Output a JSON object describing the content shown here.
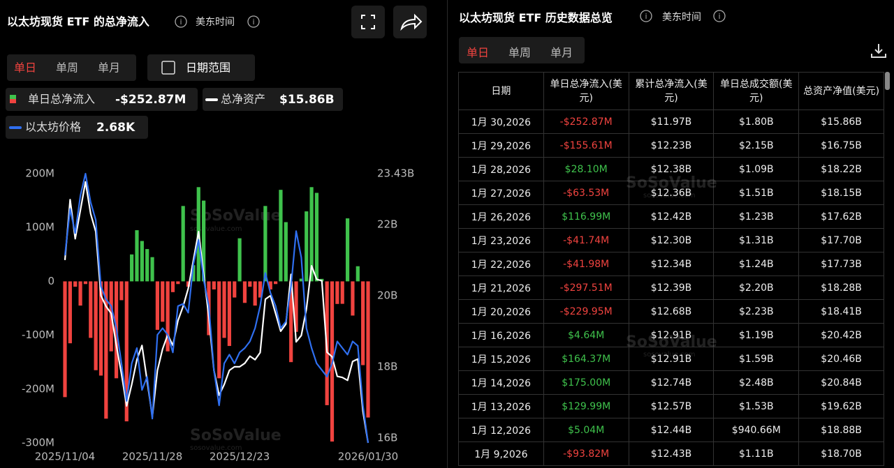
{
  "left_panel": {
    "title": "以太坊现货 ETF 的总净流入",
    "timezone": "美东时间",
    "tabs": [
      "单日",
      "单周",
      "单月"
    ],
    "date_range": "日期范围",
    "legend": [
      {
        "label": "单日总净流入",
        "value": "-$252.87M"
      },
      {
        "label": "总净资产",
        "value": "$15.86B"
      },
      {
        "label": "以太坊价格",
        "value": "2.68K"
      }
    ],
    "watermark": "SoSoValue",
    "watermark_sub": "sosovalue.com"
  },
  "chart_data": {
    "type": "bar",
    "categories": [
      "2025/11/04",
      null,
      null,
      null,
      null,
      null,
      null,
      null,
      null,
      null,
      null,
      null,
      null,
      null,
      null,
      null,
      null,
      "2025/11/28",
      null,
      null,
      null,
      null,
      null,
      null,
      null,
      null,
      null,
      null,
      null,
      null,
      null,
      null,
      null,
      null,
      "2025/12/23",
      null,
      null,
      null,
      null,
      null,
      null,
      null,
      null,
      null,
      null,
      null,
      null,
      null,
      null,
      null,
      null,
      null,
      null,
      null,
      null,
      null,
      null,
      null,
      null,
      "2026/01/30"
    ],
    "series": [
      {
        "name": "单日总净流入",
        "type": "bar",
        "color": "#f0433f",
        "positive_color": "#3fc24c",
        "values": [
          -215,
          -115,
          -10,
          -45,
          -5,
          -105,
          -165,
          -175,
          -255,
          -130,
          -180,
          -35,
          -260,
          50,
          95,
          75,
          60,
          45,
          -90,
          -75,
          -130,
          -20,
          -5,
          140,
          -10,
          30,
          175,
          150,
          -100,
          -15,
          -180,
          -105,
          -120,
          -30,
          80,
          -40,
          -10,
          -45,
          -30,
          140,
          -15,
          -5,
          170,
          110,
          -150,
          -93.82,
          5.04,
          129.99,
          175,
          164.37,
          4.64,
          -229.95,
          -297.51,
          -41.98,
          -41.74,
          116.99,
          -63.53,
          28.1,
          -155.61,
          -252.87
        ]
      },
      {
        "name": "总净资产",
        "type": "line",
        "axis": "y2",
        "color": "#ffffff",
        "values": [
          21.0,
          22.7,
          21.6,
          22.4,
          23.2,
          22.3,
          21.8,
          20.0,
          19.7,
          19.5,
          18.6,
          17.8,
          16.9,
          17.5,
          18.2,
          18.6,
          17.6,
          16.6,
          17.9,
          18.5,
          18.9,
          18.6,
          19.3,
          19.7,
          20.2,
          21.0,
          21.8,
          20.6,
          19.4,
          17.9,
          17.2,
          17.5,
          17.9,
          18.0,
          18.0,
          18.1,
          18.3,
          18.2,
          18.4,
          19.9,
          20.0,
          19.5,
          19.0,
          19.2,
          20.6,
          18.7,
          18.88,
          19.62,
          20.84,
          20.46,
          20.42,
          18.41,
          18.28,
          17.73,
          17.7,
          17.62,
          18.15,
          18.22,
          16.75,
          15.86
        ]
      },
      {
        "name": "以太坊价格",
        "type": "line",
        "own_scale": true,
        "color": "#2f6ff0",
        "values": [
          3530,
          3740,
          3630,
          3800,
          3900,
          3770,
          3690,
          3390,
          3330,
          3300,
          3200,
          3040,
          2870,
          3040,
          3110,
          2920,
          2980,
          2790,
          3170,
          3200,
          3170,
          3090,
          3300,
          3310,
          3270,
          3490,
          3600,
          3420,
          3300,
          3010,
          2850,
          3040,
          3080,
          3040,
          3090,
          3110,
          3140,
          3200,
          3300,
          3450,
          3360,
          3300,
          3200,
          3230,
          3390,
          3640,
          3520,
          3200,
          3110,
          3040,
          3010,
          2980,
          3040,
          3140,
          3110,
          3080,
          3140,
          3120,
          2850,
          2680
        ]
      }
    ],
    "ylim": [
      -300,
      200
    ],
    "yticks": [
      {
        "value": 200,
        "label": "200M"
      },
      {
        "value": 100,
        "label": "100M"
      },
      0,
      {
        "value": -100,
        "label": "-100M"
      },
      {
        "value": -200,
        "label": "-200M"
      },
      {
        "value": -300,
        "label": "-300M"
      }
    ],
    "y2lim": [
      15.86,
      23.43
    ],
    "y2ticks": [
      {
        "value": 23.43,
        "label": "23.43B"
      },
      {
        "value": 22,
        "label": "22B"
      },
      {
        "value": 20,
        "label": "20B"
      },
      {
        "value": 18,
        "label": "18B"
      },
      {
        "value": 16,
        "label": "16B"
      }
    ],
    "grid": false
  },
  "right_panel": {
    "title": "以太坊现货 ETF 历史数据总览",
    "timezone": "美东时间",
    "tabs": [
      "单日",
      "单周",
      "单月"
    ],
    "watermark": "SoSoValue",
    "watermark_sub": "sosovalue.com"
  },
  "table": {
    "header": [
      "日期",
      "单日总净流入(美元)",
      "累计总净流入(美元)",
      "单日总成交额(美元)",
      "总资产净值(美元)"
    ],
    "rows": [
      [
        "1月 30,2026",
        "-$252.87M",
        "$11.97B",
        "$1.80B",
        "$15.86B"
      ],
      [
        "1月 29,2026",
        "-$155.61M",
        "$12.23B",
        "$2.15B",
        "$16.75B"
      ],
      [
        "1月 28,2026",
        "$28.10M",
        "$12.38B",
        "$1.09B",
        "$18.22B"
      ],
      [
        "1月 27,2026",
        "-$63.53M",
        "$12.36B",
        "$1.51B",
        "$18.15B"
      ],
      [
        "1月 26,2026",
        "$116.99M",
        "$12.42B",
        "$1.23B",
        "$17.62B"
      ],
      [
        "1月 23,2026",
        "-$41.74M",
        "$12.30B",
        "$1.31B",
        "$17.70B"
      ],
      [
        "1月 22,2026",
        "-$41.98M",
        "$12.34B",
        "$1.24B",
        "$17.73B"
      ],
      [
        "1月 21,2026",
        "-$297.51M",
        "$12.39B",
        "$2.20B",
        "$18.28B"
      ],
      [
        "1月 20,2026",
        "-$229.95M",
        "$12.68B",
        "$2.23B",
        "$18.41B"
      ],
      [
        "1月 16,2026",
        "$4.64M",
        "$12.91B",
        "$1.19B",
        "$20.42B"
      ],
      [
        "1月 15,2026",
        "$164.37M",
        "$12.91B",
        "$1.59B",
        "$20.46B"
      ],
      [
        "1月 14,2026",
        "$175.00M",
        "$12.74B",
        "$2.48B",
        "$20.84B"
      ],
      [
        "1月 13,2026",
        "$129.99M",
        "$12.57B",
        "$1.53B",
        "$19.62B"
      ],
      [
        "1月 12,2026",
        "$5.04M",
        "$12.44B",
        "$940.66M",
        "$18.88B"
      ],
      [
        "1月 9,2026",
        "-$93.82M",
        "$12.43B",
        "$1.11B",
        "$18.70B"
      ]
    ]
  }
}
